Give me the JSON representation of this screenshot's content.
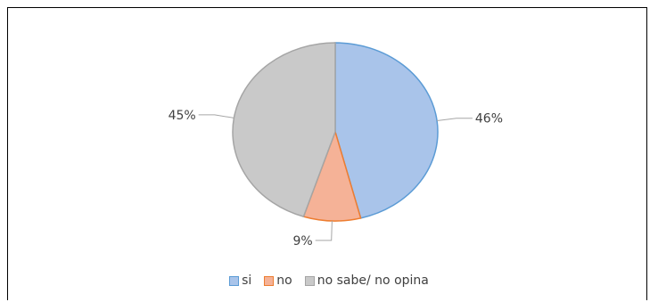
{
  "chart_data": {
    "type": "pie",
    "categories": [
      "si",
      "no",
      "no sabe/ no opina"
    ],
    "values": [
      46,
      9,
      45
    ],
    "data_labels": [
      "46%",
      "9%",
      "45%"
    ],
    "colors": {
      "fills": [
        "#a9c4ea",
        "#f5b297",
        "#c9c9c9"
      ],
      "strokes": [
        "#5b9bd5",
        "#ed7d31",
        "#a5a5a5"
      ]
    },
    "legend_position": "bottom"
  }
}
